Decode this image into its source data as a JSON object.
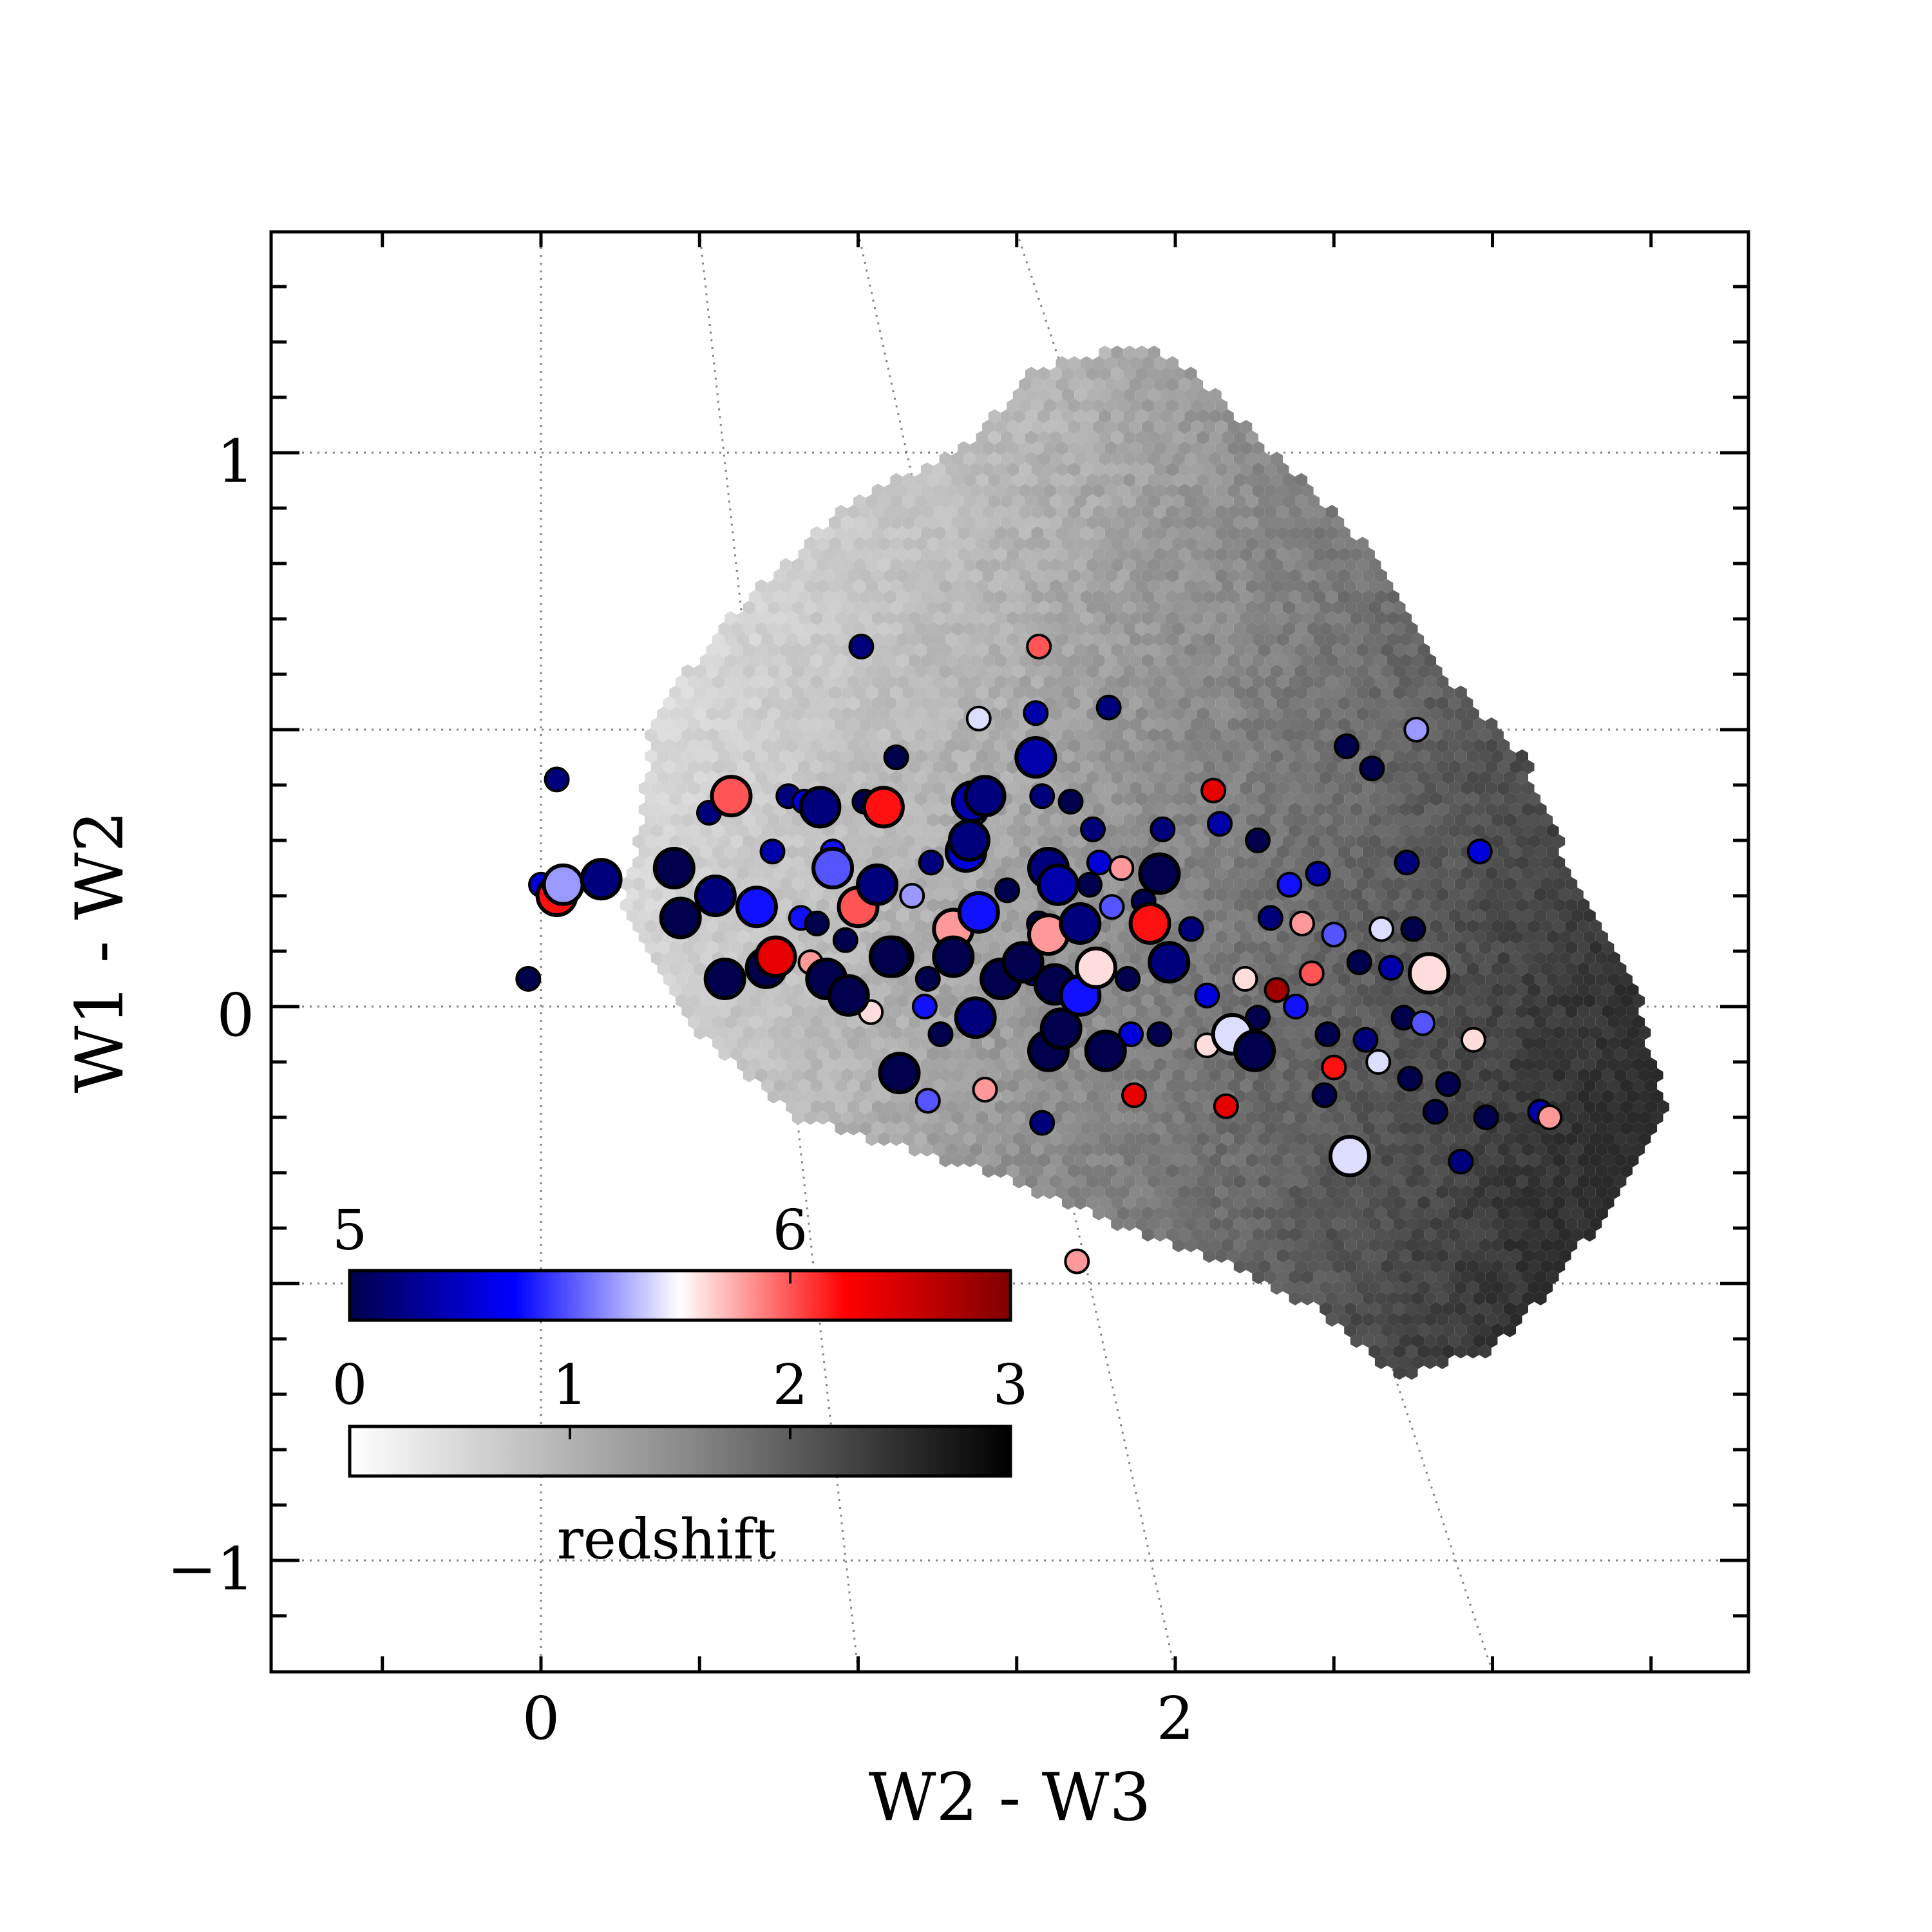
{
  "chart_data": {
    "type": "scatter",
    "xlabel": "W2 - W3",
    "ylabel": "W1 - W2",
    "xlim": [
      -0.85,
      3.8
    ],
    "ylim": [
      -1.2,
      1.4
    ],
    "x_ticks": [
      0,
      2
    ],
    "x_ticklabels": [
      "0",
      "2"
    ],
    "y_ticks": [
      -1,
      0,
      1
    ],
    "y_ticklabels": [
      "−1",
      "0",
      "1"
    ],
    "grid": true,
    "background_hexbin": {
      "description_colormap": "greys",
      "color_range": [
        0,
        3
      ],
      "outline": [
        [
          0.3,
          0.3
        ],
        [
          0.35,
          0.52
        ],
        [
          0.58,
          0.7
        ],
        [
          0.95,
          0.9
        ],
        [
          1.35,
          1.02
        ],
        [
          1.55,
          1.15
        ],
        [
          1.9,
          1.2
        ],
        [
          2.05,
          1.15
        ],
        [
          2.4,
          0.95
        ],
        [
          2.65,
          0.8
        ],
        [
          2.85,
          0.6
        ],
        [
          3.1,
          0.45
        ],
        [
          3.25,
          0.25
        ],
        [
          3.45,
          0.05
        ],
        [
          3.55,
          -0.2
        ],
        [
          3.45,
          -0.3
        ],
        [
          3.2,
          -0.5
        ],
        [
          3.0,
          -0.62
        ],
        [
          2.7,
          -0.67
        ],
        [
          2.45,
          -0.55
        ],
        [
          2.1,
          -0.45
        ],
        [
          1.75,
          -0.38
        ],
        [
          1.4,
          -0.3
        ],
        [
          1.1,
          -0.25
        ],
        [
          0.8,
          -0.2
        ],
        [
          0.5,
          -0.05
        ],
        [
          0.32,
          0.1
        ],
        [
          0.25,
          0.2
        ]
      ]
    },
    "series": [
      {
        "colorscale": "seismic",
        "color_range": [
          5,
          6.5
        ],
        "points": [
          {
            "x": 0.05,
            "y": 0.2,
            "z": 6.1,
            "big": true
          },
          {
            "x": 0.07,
            "y": 0.22,
            "z": 5.6,
            "big": true
          },
          {
            "x": 0.19,
            "y": 0.23,
            "z": 5.1,
            "big": true
          },
          {
            "x": -0.04,
            "y": 0.05,
            "z": 5.0,
            "big": false
          },
          {
            "x": 0.0,
            "y": 0.22,
            "z": 5.3,
            "big": false
          },
          {
            "x": 0.05,
            "y": 0.41,
            "z": 5.1,
            "big": false
          },
          {
            "x": 0.42,
            "y": 0.25,
            "z": 5.0,
            "big": true
          },
          {
            "x": 0.44,
            "y": 0.16,
            "z": 5.0,
            "big": true
          },
          {
            "x": 0.55,
            "y": 0.2,
            "z": 5.1,
            "big": true
          },
          {
            "x": 0.58,
            "y": 0.05,
            "z": 5.0,
            "big": true
          },
          {
            "x": 0.6,
            "y": 0.38,
            "z": 6.0,
            "big": true
          },
          {
            "x": 0.53,
            "y": 0.35,
            "z": 5.1,
            "big": false
          },
          {
            "x": 0.68,
            "y": 0.18,
            "z": 5.4,
            "big": true
          },
          {
            "x": 0.71,
            "y": 0.07,
            "z": 5.0,
            "big": true
          },
          {
            "x": 0.74,
            "y": 0.09,
            "z": 6.2,
            "big": true
          },
          {
            "x": 0.73,
            "y": 0.28,
            "z": 5.2,
            "big": false
          },
          {
            "x": 0.78,
            "y": 0.38,
            "z": 5.1,
            "big": false
          },
          {
            "x": 0.83,
            "y": 0.37,
            "z": 5.3,
            "big": false
          },
          {
            "x": 0.88,
            "y": 0.36,
            "z": 5.1,
            "big": true
          },
          {
            "x": 0.82,
            "y": 0.16,
            "z": 5.4,
            "big": false
          },
          {
            "x": 0.87,
            "y": 0.15,
            "z": 5.0,
            "big": false
          },
          {
            "x": 0.85,
            "y": 0.08,
            "z": 5.9,
            "big": false
          },
          {
            "x": 0.9,
            "y": 0.05,
            "z": 5.0,
            "big": true
          },
          {
            "x": 0.92,
            "y": 0.25,
            "z": 5.5,
            "big": true
          },
          {
            "x": 0.92,
            "y": 0.28,
            "z": 5.4,
            "big": false
          },
          {
            "x": 0.96,
            "y": 0.12,
            "z": 5.0,
            "big": false
          },
          {
            "x": 0.97,
            "y": 0.02,
            "z": 5.0,
            "big": true
          },
          {
            "x": 1.01,
            "y": 0.65,
            "z": 5.1,
            "big": false
          },
          {
            "x": 1.02,
            "y": 0.37,
            "z": 5.0,
            "big": false
          },
          {
            "x": 1.0,
            "y": 0.18,
            "z": 6.0,
            "big": true
          },
          {
            "x": 1.06,
            "y": 0.22,
            "z": 5.1,
            "big": true
          },
          {
            "x": 1.08,
            "y": 0.36,
            "z": 6.1,
            "big": true
          },
          {
            "x": 1.12,
            "y": 0.45,
            "z": 5.0,
            "big": false
          },
          {
            "x": 1.11,
            "y": 0.09,
            "z": 6.3,
            "big": true
          },
          {
            "x": 1.1,
            "y": 0.09,
            "z": 5.0,
            "big": true
          },
          {
            "x": 1.04,
            "y": -0.01,
            "z": 5.8,
            "big": false
          },
          {
            "x": 1.13,
            "y": -0.12,
            "z": 5.0,
            "big": true
          },
          {
            "x": 1.17,
            "y": 0.2,
            "z": 5.6,
            "big": false
          },
          {
            "x": 1.23,
            "y": 0.26,
            "z": 5.1,
            "big": false
          },
          {
            "x": 1.21,
            "y": 0.0,
            "z": 5.4,
            "big": false
          },
          {
            "x": 1.22,
            "y": 0.05,
            "z": 5.0,
            "big": false
          },
          {
            "x": 1.26,
            "y": -0.05,
            "z": 5.0,
            "big": false
          },
          {
            "x": 1.3,
            "y": 0.14,
            "z": 5.9,
            "big": true
          },
          {
            "x": 1.3,
            "y": 0.09,
            "z": 5.0,
            "big": true
          },
          {
            "x": 1.34,
            "y": 0.28,
            "z": 5.3,
            "big": true
          },
          {
            "x": 1.35,
            "y": 0.3,
            "z": 5.1,
            "big": true
          },
          {
            "x": 1.36,
            "y": 0.37,
            "z": 5.2,
            "big": true
          },
          {
            "x": 1.38,
            "y": 0.17,
            "z": 5.4,
            "big": true
          },
          {
            "x": 1.37,
            "y": -0.02,
            "z": 5.1,
            "big": true
          },
          {
            "x": 1.37,
            "y": 0.35,
            "z": 5.5,
            "big": false
          },
          {
            "x": 1.4,
            "y": 0.38,
            "z": 5.1,
            "big": true
          },
          {
            "x": 1.38,
            "y": 0.52,
            "z": 5.7,
            "big": false
          },
          {
            "x": 1.45,
            "y": 0.05,
            "z": 5.0,
            "big": true
          },
          {
            "x": 1.47,
            "y": 0.21,
            "z": 5.0,
            "big": false
          },
          {
            "x": 1.52,
            "y": 0.08,
            "z": 5.0,
            "big": true
          },
          {
            "x": 1.55,
            "y": 0.06,
            "z": 5.2,
            "big": false
          },
          {
            "x": 1.57,
            "y": 0.15,
            "z": 5.0,
            "big": false
          },
          {
            "x": 1.56,
            "y": 0.45,
            "z": 5.2,
            "big": true
          },
          {
            "x": 1.56,
            "y": 0.53,
            "z": 5.2,
            "big": false
          },
          {
            "x": 1.58,
            "y": 0.38,
            "z": 5.1,
            "big": false
          },
          {
            "x": 1.57,
            "y": 0.65,
            "z": 6.0,
            "big": false
          },
          {
            "x": 1.6,
            "y": 0.25,
            "z": 5.1,
            "big": true
          },
          {
            "x": 1.63,
            "y": 0.22,
            "z": 5.2,
            "big": true
          },
          {
            "x": 1.6,
            "y": 0.13,
            "z": 5.9,
            "big": true
          },
          {
            "x": 1.62,
            "y": 0.04,
            "z": 5.0,
            "big": true
          },
          {
            "x": 1.6,
            "y": -0.08,
            "z": 5.0,
            "big": true
          },
          {
            "x": 1.64,
            "y": -0.04,
            "z": 5.0,
            "big": true
          },
          {
            "x": 1.67,
            "y": 0.37,
            "z": 5.0,
            "big": false
          },
          {
            "x": 1.7,
            "y": 0.02,
            "z": 5.4,
            "big": true
          },
          {
            "x": 1.7,
            "y": 0.15,
            "z": 5.1,
            "big": true
          },
          {
            "x": 1.73,
            "y": 0.22,
            "z": 5.0,
            "big": false
          },
          {
            "x": 1.75,
            "y": 0.07,
            "z": 5.8,
            "big": true
          },
          {
            "x": 1.76,
            "y": 0.26,
            "z": 5.3,
            "big": false
          },
          {
            "x": 1.74,
            "y": 0.32,
            "z": 5.1,
            "big": false
          },
          {
            "x": 1.79,
            "y": 0.54,
            "z": 5.1,
            "big": false
          },
          {
            "x": 1.8,
            "y": 0.18,
            "z": 5.5,
            "big": false
          },
          {
            "x": 1.78,
            "y": -0.08,
            "z": 5.0,
            "big": true
          },
          {
            "x": 1.83,
            "y": 0.25,
            "z": 5.9,
            "big": false
          },
          {
            "x": 1.85,
            "y": 0.05,
            "z": 5.0,
            "big": false
          },
          {
            "x": 1.86,
            "y": -0.05,
            "z": 5.3,
            "big": false
          },
          {
            "x": 1.87,
            "y": -0.16,
            "z": 6.2,
            "big": false
          },
          {
            "x": 1.9,
            "y": 0.19,
            "z": 5.0,
            "big": false
          },
          {
            "x": 1.92,
            "y": 0.15,
            "z": 6.1,
            "big": true
          },
          {
            "x": 1.93,
            "y": 0.25,
            "z": 5.4,
            "big": false
          },
          {
            "x": 1.95,
            "y": 0.24,
            "z": 5.0,
            "big": true
          },
          {
            "x": 1.96,
            "y": 0.32,
            "z": 5.1,
            "big": false
          },
          {
            "x": 1.98,
            "y": 0.08,
            "z": 5.1,
            "big": true
          },
          {
            "x": 1.95,
            "y": -0.05,
            "z": 5.0,
            "big": false
          },
          {
            "x": 2.05,
            "y": 0.14,
            "z": 5.1,
            "big": false
          },
          {
            "x": 2.1,
            "y": 0.02,
            "z": 5.3,
            "big": false
          },
          {
            "x": 2.1,
            "y": -0.07,
            "z": 5.8,
            "big": false
          },
          {
            "x": 2.12,
            "y": 0.39,
            "z": 6.2,
            "big": false
          },
          {
            "x": 2.14,
            "y": 0.33,
            "z": 5.2,
            "big": false
          },
          {
            "x": 2.16,
            "y": -0.18,
            "z": 6.2,
            "big": false
          },
          {
            "x": 2.18,
            "y": -0.05,
            "z": 5.7,
            "big": true
          },
          {
            "x": 2.22,
            "y": 0.05,
            "z": 5.8,
            "big": false
          },
          {
            "x": 2.26,
            "y": 0.3,
            "z": 5.0,
            "big": false
          },
          {
            "x": 2.26,
            "y": -0.02,
            "z": 5.0,
            "big": false
          },
          {
            "x": 2.25,
            "y": -0.08,
            "z": 5.0,
            "big": true
          },
          {
            "x": 2.3,
            "y": 0.16,
            "z": 5.1,
            "big": false
          },
          {
            "x": 2.32,
            "y": 0.03,
            "z": 6.4,
            "big": false
          },
          {
            "x": 2.36,
            "y": 0.22,
            "z": 5.4,
            "big": false
          },
          {
            "x": 2.38,
            "y": 0.0,
            "z": 5.4,
            "big": false
          },
          {
            "x": 2.4,
            "y": 0.15,
            "z": 5.9,
            "big": false
          },
          {
            "x": 2.43,
            "y": 0.06,
            "z": 6.0,
            "big": false
          },
          {
            "x": 2.45,
            "y": 0.24,
            "z": 5.2,
            "big": false
          },
          {
            "x": 2.47,
            "y": -0.16,
            "z": 5.0,
            "big": false
          },
          {
            "x": 2.48,
            "y": -0.05,
            "z": 5.0,
            "big": false
          },
          {
            "x": 2.5,
            "y": 0.13,
            "z": 5.5,
            "big": false
          },
          {
            "x": 2.5,
            "y": -0.11,
            "z": 6.1,
            "big": false
          },
          {
            "x": 2.54,
            "y": 0.47,
            "z": 5.0,
            "big": false
          },
          {
            "x": 2.55,
            "y": -0.27,
            "z": 5.7,
            "big": true
          },
          {
            "x": 2.58,
            "y": 0.08,
            "z": 5.0,
            "big": false
          },
          {
            "x": 2.6,
            "y": -0.06,
            "z": 5.1,
            "big": false
          },
          {
            "x": 2.62,
            "y": 0.43,
            "z": 5.0,
            "big": false
          },
          {
            "x": 2.64,
            "y": -0.1,
            "z": 5.7,
            "big": false
          },
          {
            "x": 2.65,
            "y": 0.14,
            "z": 5.7,
            "big": false
          },
          {
            "x": 2.68,
            "y": 0.07,
            "z": 5.2,
            "big": false
          },
          {
            "x": 2.72,
            "y": -0.02,
            "z": 5.0,
            "big": false
          },
          {
            "x": 2.73,
            "y": 0.26,
            "z": 5.1,
            "big": false
          },
          {
            "x": 2.74,
            "y": -0.13,
            "z": 5.0,
            "big": false
          },
          {
            "x": 2.75,
            "y": 0.14,
            "z": 5.0,
            "big": false
          },
          {
            "x": 2.76,
            "y": 0.5,
            "z": 5.6,
            "big": false
          },
          {
            "x": 2.78,
            "y": -0.03,
            "z": 5.5,
            "big": false
          },
          {
            "x": 2.8,
            "y": 0.06,
            "z": 5.8,
            "big": true
          },
          {
            "x": 2.82,
            "y": -0.19,
            "z": 5.0,
            "big": false
          },
          {
            "x": 2.86,
            "y": -0.14,
            "z": 5.0,
            "big": false
          },
          {
            "x": 2.9,
            "y": -0.28,
            "z": 5.1,
            "big": false
          },
          {
            "x": 2.94,
            "y": -0.06,
            "z": 5.8,
            "big": false
          },
          {
            "x": 2.96,
            "y": 0.28,
            "z": 5.3,
            "big": false
          },
          {
            "x": 2.98,
            "y": -0.2,
            "z": 5.0,
            "big": false
          },
          {
            "x": 3.15,
            "y": -0.19,
            "z": 5.2,
            "big": false
          },
          {
            "x": 3.18,
            "y": -0.2,
            "z": 5.9,
            "big": false
          },
          {
            "x": 1.69,
            "y": -0.46,
            "z": 5.9,
            "big": false
          },
          {
            "x": 1.58,
            "y": -0.21,
            "z": 5.1,
            "big": false
          },
          {
            "x": 1.22,
            "y": -0.17,
            "z": 5.5,
            "big": false
          },
          {
            "x": 1.4,
            "y": -0.15,
            "z": 5.9,
            "big": false
          }
        ]
      }
    ],
    "colorbars": [
      {
        "name": "points",
        "colorscale": "seismic",
        "range": [
          5,
          6.5
        ],
        "ticks": [
          5,
          6
        ],
        "ticklabels": [
          "5",
          "6"
        ]
      },
      {
        "name": "hexbin",
        "colorscale": "greys",
        "range": [
          0,
          3
        ],
        "ticks": [
          0,
          1,
          2,
          3
        ],
        "ticklabels": [
          "0",
          "1",
          "2",
          "3"
        ],
        "label": "redshift"
      }
    ]
  }
}
